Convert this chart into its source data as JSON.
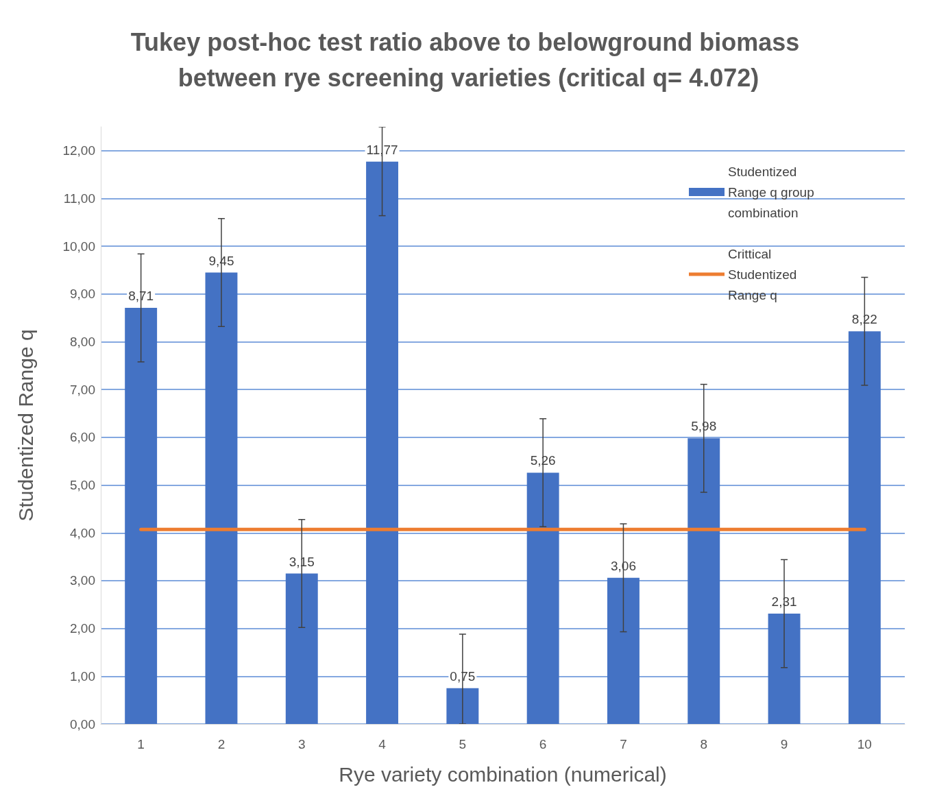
{
  "chart_data": {
    "type": "bar",
    "title": "Tukey post-hoc test ratio above to belowground biomass between rye screening varieties (critical q= 4.072)",
    "xlabel": "Rye variety combination (numerical)",
    "ylabel": "Studentized Range q",
    "categories": [
      "1",
      "2",
      "3",
      "4",
      "5",
      "6",
      "7",
      "8",
      "9",
      "10"
    ],
    "series": [
      {
        "name": "Studentized Range q group combination",
        "color": "#4472c4",
        "values": [
          8.71,
          9.45,
          3.15,
          11.77,
          0.75,
          5.26,
          3.06,
          5.98,
          2.31,
          8.22
        ],
        "value_labels": [
          "8,71",
          "9,45",
          "3,15",
          "11,77",
          "0,75",
          "5,26",
          "3,06",
          "5,98",
          "2,31",
          "8,22"
        ],
        "errors": [
          [
            7.58,
            9.84
          ],
          [
            8.32,
            10.58
          ],
          [
            2.02,
            4.28
          ],
          [
            10.64,
            12.5
          ],
          [
            0,
            1.88
          ],
          [
            4.13,
            6.39
          ],
          [
            1.93,
            4.19
          ],
          [
            4.85,
            7.11
          ],
          [
            1.18,
            3.44
          ],
          [
            7.09,
            9.35
          ]
        ]
      },
      {
        "name": "Crittical Studentized Range q",
        "type": "line",
        "color": "#ed7d31",
        "marker": "none",
        "values": [
          4.072,
          4.072,
          4.072,
          4.072,
          4.072,
          4.072,
          4.072,
          4.072,
          4.072,
          4.072
        ]
      }
    ],
    "ylim": [
      0,
      12.5
    ],
    "yticks": [
      {
        "value": 0,
        "label": "0,00"
      },
      {
        "value": 1,
        "label": "1,00"
      },
      {
        "value": 2,
        "label": "2,00"
      },
      {
        "value": 3,
        "label": "3,00"
      },
      {
        "value": 4,
        "label": "4,00"
      },
      {
        "value": 5,
        "label": "5,00"
      },
      {
        "value": 6,
        "label": "6,00"
      },
      {
        "value": 7,
        "label": "7,00"
      },
      {
        "value": 8,
        "label": "8,00"
      },
      {
        "value": 9,
        "label": "9,00"
      },
      {
        "value": 10,
        "label": "10,00"
      },
      {
        "value": 11,
        "label": "11,00"
      },
      {
        "value": 12,
        "label": "12,00"
      }
    ],
    "grid": "y",
    "legend": "top right"
  }
}
